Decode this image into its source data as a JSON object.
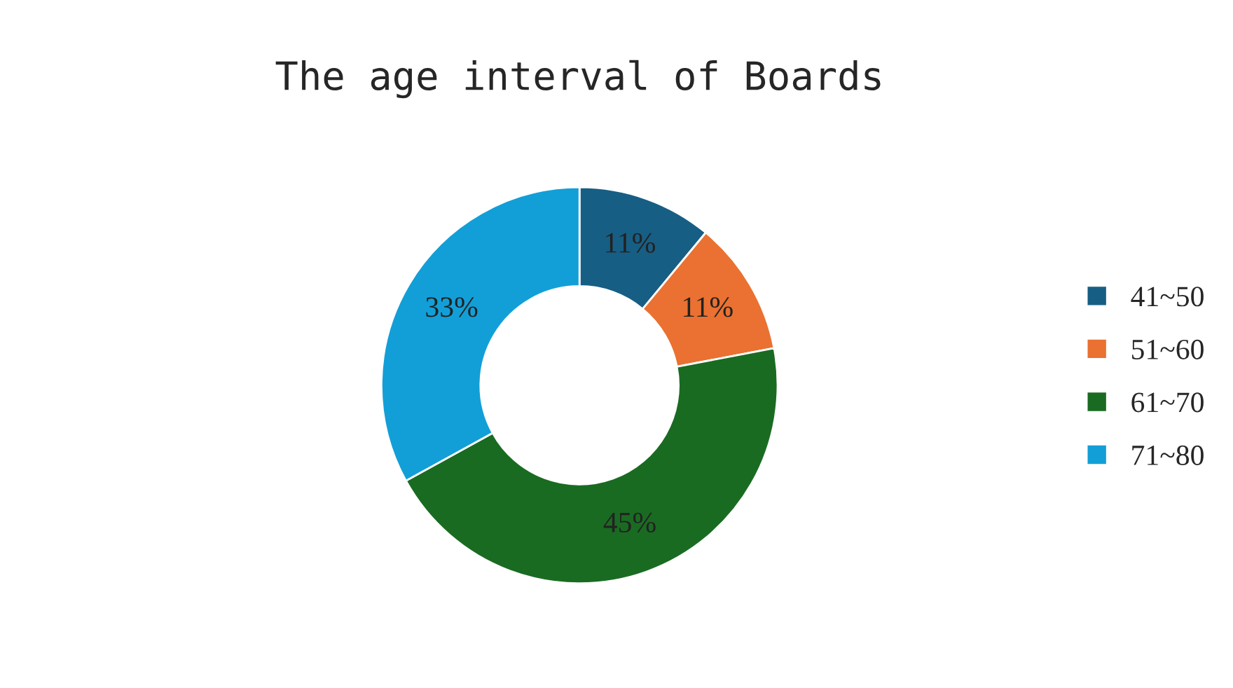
{
  "chart_data": {
    "type": "donut",
    "title": "The age interval of Boards",
    "categories": [
      "41~50",
      "51~60",
      "61~70",
      "71~80"
    ],
    "values": [
      11,
      11,
      45,
      33
    ],
    "colors": [
      "#175e84",
      "#ea7131",
      "#1a6b22",
      "#129fd8"
    ],
    "value_labels": [
      "11%",
      "11%",
      "45%",
      "33%"
    ],
    "legend": "right"
  }
}
